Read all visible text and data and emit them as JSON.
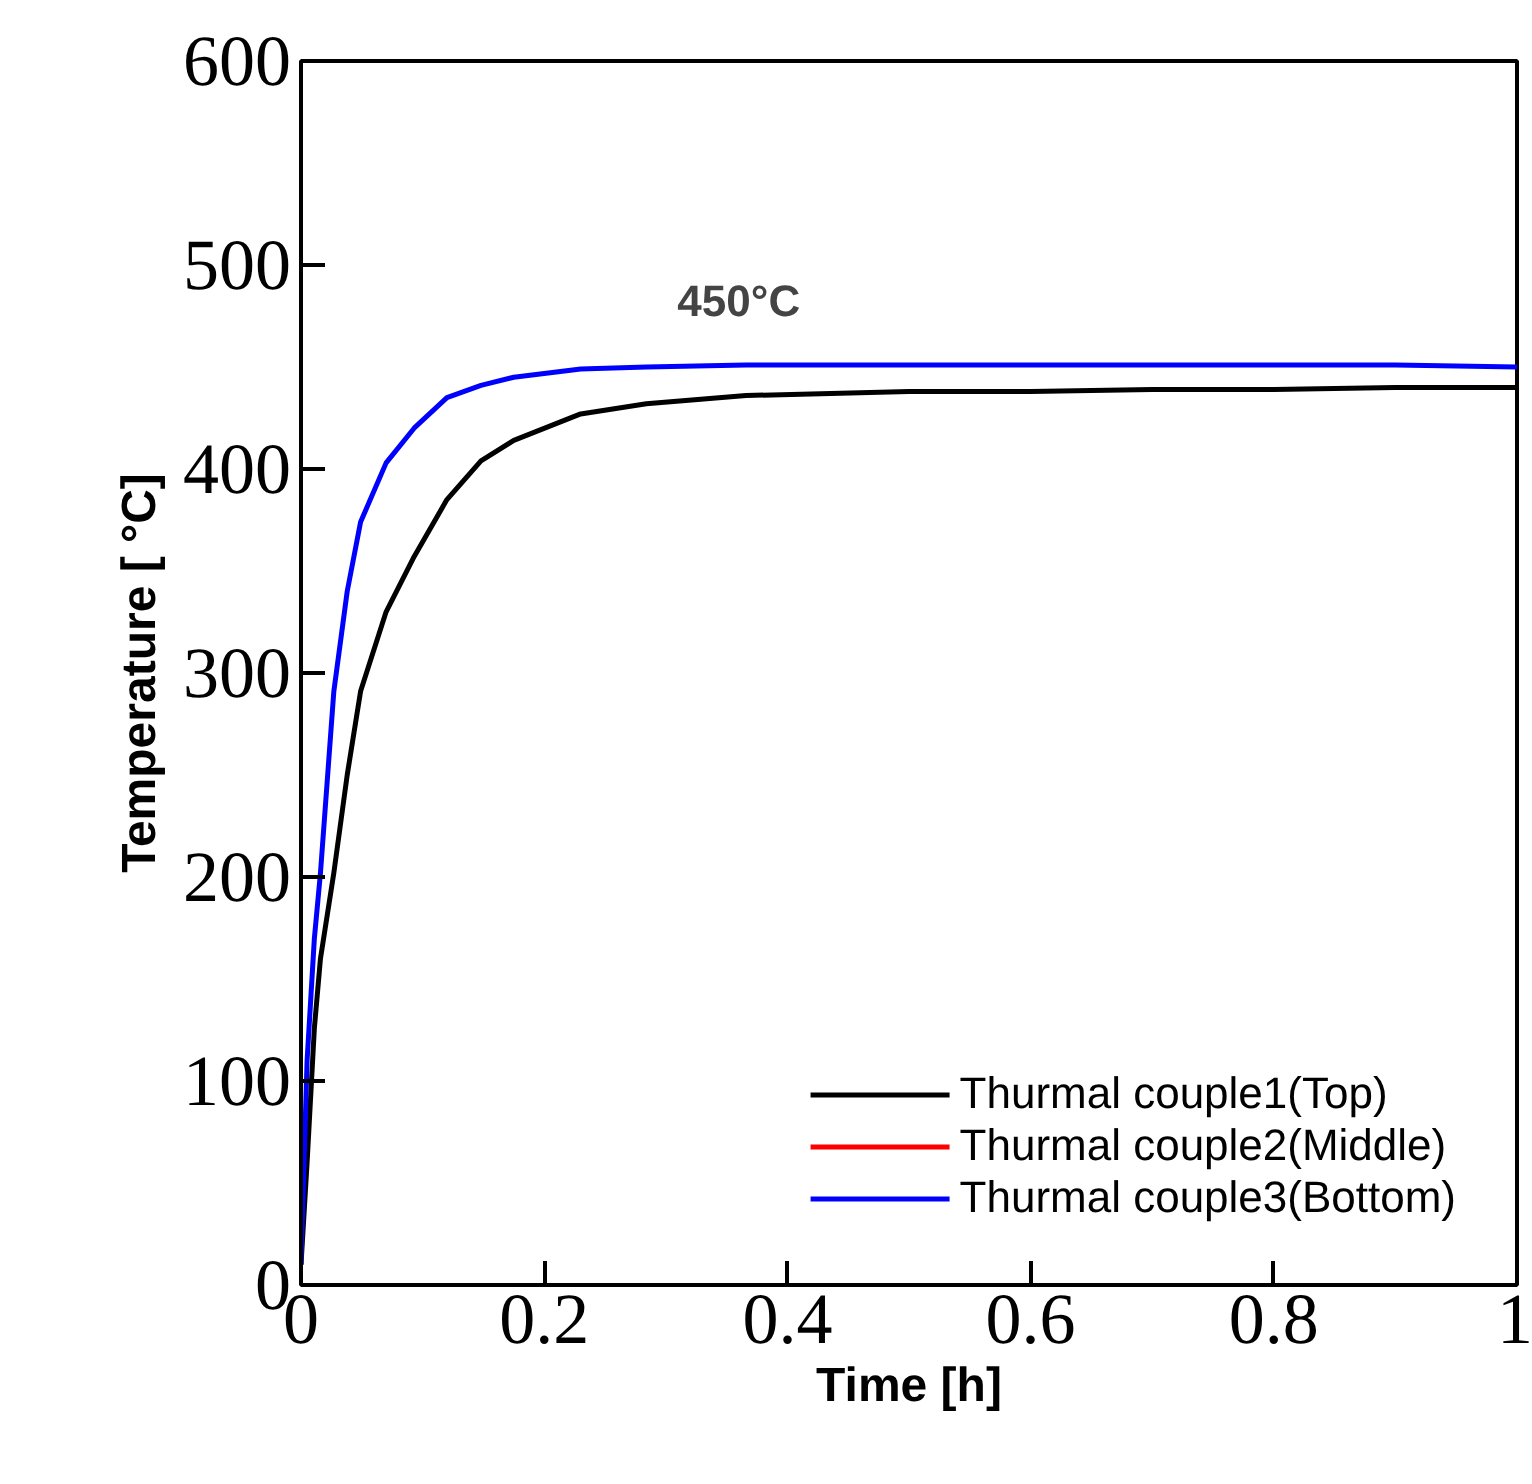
{
  "chart_data": {
    "type": "line",
    "xlabel": "Time [h]",
    "ylabel": "Temperature [ °C]",
    "annotations": [
      "450°C"
    ],
    "xlim": [
      0,
      1
    ],
    "xticks": [
      0,
      0.2,
      0.4,
      0.6,
      0.8,
      1
    ],
    "ylim": [
      0,
      600
    ],
    "yticks": [
      0,
      100,
      200,
      300,
      400,
      500,
      600
    ],
    "grid": false,
    "legend": "bottom right",
    "line_style": "solid",
    "marker": "none",
    "x": [
      0,
      0.005,
      0.011,
      0.016,
      0.027,
      0.038,
      0.049,
      0.07,
      0.093,
      0.12,
      0.148,
      0.175,
      0.23,
      0.284,
      0.366,
      0.5,
      0.6,
      0.7,
      0.8,
      0.9,
      1.0
    ],
    "series": [
      {
        "name": "Thurmal couple1(Top)",
        "color": "#000000",
        "values": [
          10,
          60,
          126,
          160,
          202,
          250,
          291,
          330,
          357,
          385,
          404,
          414,
          427,
          432,
          436,
          438,
          438,
          439,
          439,
          440,
          440
        ]
      },
      {
        "name": "Thurmal couple2(Middle)",
        "color": "#ff0000",
        "values": [
          null,
          null,
          null,
          null,
          null,
          null,
          null,
          null,
          null,
          null,
          null,
          null,
          null,
          null,
          null,
          null,
          null,
          null,
          null,
          null,
          null
        ]
      },
      {
        "name": "Thurmal couple3(Bottom)",
        "color": "#0000ff",
        "values": [
          10,
          110,
          170,
          202,
          291,
          340,
          374,
          403,
          420,
          435,
          441,
          445,
          449,
          450,
          451,
          451,
          451,
          451,
          451,
          451,
          450
        ]
      }
    ]
  }
}
